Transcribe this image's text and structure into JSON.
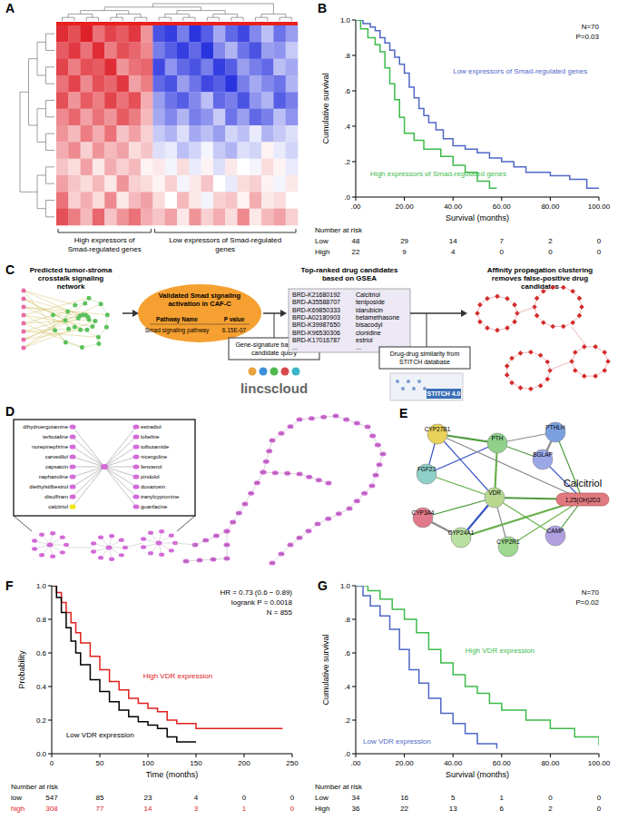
{
  "chart_data": [
    {
      "type": "heatmap",
      "panel": "A",
      "color_range": [
        -2,
        2
      ],
      "groups": [
        {
          "label": "High expressors of Smad-regulated genes",
          "columns": 8
        },
        {
          "label": "Low expressors of Smad-regulated genes",
          "columns": 12
        }
      ],
      "cells": [
        [
          1.8,
          1.5,
          1.9,
          1.2,
          1.6,
          1.4,
          1.7,
          0.9,
          -1.6,
          -1.8,
          -1.2,
          -1.9,
          -1.5,
          -0.8,
          -1.4,
          -1.7,
          -1.1,
          -0.6,
          -1.3,
          -0.9
        ],
        [
          1.4,
          1.7,
          1.2,
          1.8,
          1.1,
          1.5,
          1.3,
          1.0,
          -1.2,
          -1.5,
          -1.8,
          -1.4,
          -1.9,
          -1.1,
          -0.7,
          -1.3,
          -1.6,
          -0.9,
          -1.0,
          -0.5
        ],
        [
          1.6,
          1.1,
          1.5,
          1.4,
          1.8,
          0.9,
          1.2,
          1.3,
          -1.7,
          -1.0,
          -1.4,
          -1.6,
          -1.2,
          -1.8,
          -1.5,
          -0.9,
          -1.2,
          -1.4,
          -0.6,
          -0.8
        ],
        [
          1.2,
          1.6,
          1.0,
          1.5,
          1.3,
          1.7,
          0.8,
          1.1,
          -1.4,
          -1.6,
          -0.9,
          -1.3,
          -1.7,
          -1.5,
          -1.9,
          -1.2,
          -0.8,
          -1.1,
          -1.3,
          -0.7
        ],
        [
          1.5,
          0.9,
          1.4,
          1.1,
          1.6,
          1.2,
          1.5,
          0.7,
          -0.9,
          -1.3,
          -1.5,
          -1.1,
          -0.6,
          -1.4,
          -1.2,
          -1.6,
          -1.0,
          -0.7,
          -1.5,
          -1.2
        ],
        [
          1.0,
          1.3,
          0.8,
          1.2,
          0.9,
          1.4,
          1.1,
          0.6,
          -0.8,
          -1.1,
          -0.7,
          -1.2,
          -1.0,
          -0.5,
          -1.3,
          -0.9,
          -1.4,
          -1.2,
          -0.6,
          -1.0
        ],
        [
          0.9,
          0.6,
          1.1,
          0.7,
          1.2,
          0.5,
          0.8,
          0.4,
          -0.5,
          -0.7,
          -0.3,
          -0.8,
          -0.6,
          -0.9,
          -0.4,
          -0.6,
          -0.2,
          -0.7,
          -0.5,
          -0.3
        ],
        [
          0.7,
          1.0,
          0.4,
          0.9,
          0.6,
          0.8,
          0.3,
          0.5,
          -0.3,
          -0.2,
          -0.6,
          -0.4,
          -0.1,
          -0.5,
          -0.7,
          -0.3,
          -0.4,
          0.1,
          -0.2,
          -0.4
        ],
        [
          0.5,
          0.3,
          0.8,
          0.2,
          0.7,
          0.4,
          0.6,
          0.1,
          0.2,
          -0.1,
          0.3,
          -0.2,
          0.1,
          -0.3,
          0.2,
          0.0,
          -0.1,
          0.3,
          0.1,
          -0.2
        ],
        [
          0.8,
          0.5,
          0.3,
          0.6,
          0.2,
          0.9,
          0.4,
          0.3,
          0.1,
          0.4,
          -0.1,
          0.2,
          0.5,
          0.0,
          -0.2,
          0.3,
          0.4,
          0.1,
          -0.1,
          0.2
        ],
        [
          1.2,
          0.4,
          0.7,
          0.3,
          1.0,
          0.2,
          0.6,
          0.8,
          0.3,
          0.0,
          0.6,
          0.2,
          -0.1,
          0.4,
          0.5,
          0.1,
          0.7,
          0.2,
          0.3,
          0.0
        ],
        [
          1.5,
          1.1,
          0.6,
          1.3,
          0.5,
          0.9,
          1.2,
          0.7,
          0.5,
          0.8,
          0.2,
          0.9,
          0.4,
          0.7,
          0.3,
          1.0,
          0.2,
          0.6,
          0.8,
          0.4
        ]
      ]
    },
    {
      "type": "line",
      "panel": "B",
      "line_style": "step",
      "xlabel": "Survival (months)",
      "ylabel": "Cumulative survival",
      "xlim": [
        0,
        100
      ],
      "ylim": [
        0,
        1
      ],
      "xticks": [
        {
          "value": 0,
          "label": ".00"
        },
        {
          "value": 20,
          "label": "20.00"
        },
        {
          "value": 40,
          "label": "40.00"
        },
        {
          "value": 60,
          "label": "60.00"
        },
        {
          "value": 80,
          "label": "80.00"
        },
        {
          "value": 100,
          "label": "100.00"
        }
      ],
      "yticks": [
        {
          "value": 0,
          "label": ".0"
        },
        {
          "value": 0.2,
          "label": ".2"
        },
        {
          "value": 0.4,
          "label": ".4"
        },
        {
          "value": 0.6,
          "label": ".6"
        },
        {
          "value": 0.8,
          "label": ".8"
        },
        {
          "value": 1,
          "label": "1.0"
        }
      ],
      "annotations": [
        "N=70",
        "P=0.03"
      ],
      "series": [
        {
          "name": "Low expressors of Smad-regulated genes",
          "color": "#4f67c7",
          "x": [
            0,
            3,
            6,
            8,
            10,
            12,
            14,
            16,
            18,
            20,
            22,
            24,
            26,
            28,
            30,
            33,
            36,
            40,
            45,
            50,
            55,
            60,
            65,
            70,
            80,
            88,
            95,
            100
          ],
          "values": [
            1,
            0.98,
            0.96,
            0.94,
            0.9,
            0.87,
            0.83,
            0.79,
            0.75,
            0.7,
            0.62,
            0.56,
            0.5,
            0.46,
            0.42,
            0.38,
            0.33,
            0.29,
            0.27,
            0.25,
            0.22,
            0.2,
            0.17,
            0.14,
            0.12,
            0.1,
            0.05,
            0.05
          ]
        },
        {
          "name": "High expressors of Smad-regulated genes",
          "color": "#3dbb4a",
          "x": [
            0,
            2,
            5,
            8,
            10,
            12,
            14,
            16,
            18,
            20,
            24,
            28,
            35,
            40,
            45,
            50,
            55,
            58
          ],
          "values": [
            1,
            0.95,
            0.9,
            0.86,
            0.82,
            0.73,
            0.64,
            0.55,
            0.45,
            0.36,
            0.32,
            0.27,
            0.23,
            0.18,
            0.14,
            0.09,
            0.05,
            0.05
          ]
        }
      ],
      "risk_table": {
        "title": "Number at risk",
        "times": [
          0,
          20,
          40,
          60,
          80,
          100
        ],
        "rows": [
          {
            "label": "Low",
            "color": "#000000",
            "values": [
              48,
              29,
              14,
              7,
              2,
              0
            ]
          },
          {
            "label": "High",
            "color": "#000000",
            "values": [
              22,
              9,
              4,
              0,
              0,
              0
            ]
          }
        ]
      }
    },
    {
      "type": "line",
      "panel": "F",
      "line_style": "step",
      "xlabel": "Time (months)",
      "ylabel": "Probability",
      "xlim": [
        0,
        250
      ],
      "ylim": [
        0,
        1
      ],
      "xticks": [
        0,
        50,
        100,
        150,
        200,
        250
      ],
      "yticks": [
        {
          "value": 0,
          "label": "0.0"
        },
        {
          "value": 0.2,
          "label": "0.2"
        },
        {
          "value": 0.4,
          "label": "0.4"
        },
        {
          "value": 0.6,
          "label": "0.6"
        },
        {
          "value": 0.8,
          "label": "0.8"
        },
        {
          "value": 1,
          "label": "1.0"
        }
      ],
      "annotations": [
        "HR = 0.73 (0.6 − 0.89)",
        "logrank P = 0.0018",
        "N = 855"
      ],
      "series": [
        {
          "name": "High VDR expression",
          "color": "#e0201b",
          "x": [
            0,
            5,
            10,
            15,
            20,
            25,
            30,
            40,
            50,
            60,
            70,
            80,
            90,
            100,
            110,
            120,
            130,
            150,
            170,
            200,
            240
          ],
          "values": [
            1,
            0.96,
            0.9,
            0.84,
            0.78,
            0.72,
            0.66,
            0.58,
            0.5,
            0.43,
            0.38,
            0.33,
            0.3,
            0.27,
            0.25,
            0.2,
            0.18,
            0.15,
            0.15,
            0.15,
            0.15
          ]
        },
        {
          "name": "Low VDR expression",
          "color": "#000000",
          "x": [
            0,
            5,
            10,
            15,
            20,
            25,
            30,
            40,
            50,
            60,
            70,
            80,
            90,
            100,
            110,
            120,
            130,
            150
          ],
          "values": [
            1,
            0.93,
            0.84,
            0.75,
            0.67,
            0.6,
            0.53,
            0.44,
            0.37,
            0.31,
            0.26,
            0.22,
            0.19,
            0.17,
            0.15,
            0.1,
            0.07,
            0.07
          ]
        }
      ],
      "risk_table": {
        "title": "Number at risk",
        "times": [
          0,
          50,
          100,
          150,
          200,
          250
        ],
        "rows": [
          {
            "label": "low",
            "color": "#000000",
            "values": [
              547,
              85,
              23,
              4,
              0,
              0
            ]
          },
          {
            "label": "high",
            "color": "#e0201b",
            "values": [
              308,
              77,
              14,
              3,
              1,
              0
            ]
          }
        ]
      }
    },
    {
      "type": "line",
      "panel": "G",
      "line_style": "step",
      "xlabel": "Survival (months)",
      "ylabel": "Cumulative survival",
      "xlim": [
        0,
        100
      ],
      "ylim": [
        0,
        1
      ],
      "xticks": [
        {
          "value": 0,
          "label": ".00"
        },
        {
          "value": 20,
          "label": "20.00"
        },
        {
          "value": 40,
          "label": "40.00"
        },
        {
          "value": 60,
          "label": "60.00"
        },
        {
          "value": 80,
          "label": "80.00"
        },
        {
          "value": 100,
          "label": "100.00"
        }
      ],
      "yticks": [
        {
          "value": 0,
          "label": ".0"
        },
        {
          "value": 0.2,
          "label": ".2"
        },
        {
          "value": 0.4,
          "label": ".4"
        },
        {
          "value": 0.6,
          "label": ".6"
        },
        {
          "value": 0.8,
          "label": ".8"
        },
        {
          "value": 1,
          "label": "1.0"
        }
      ],
      "annotations": [
        "N=70",
        "P=0.02"
      ],
      "series": [
        {
          "name": "High VDR expression",
          "color": "#3dbb4a",
          "x": [
            0,
            5,
            10,
            15,
            20,
            25,
            30,
            35,
            40,
            45,
            50,
            55,
            60,
            70,
            80,
            90,
            100
          ],
          "values": [
            1,
            0.97,
            0.92,
            0.86,
            0.8,
            0.72,
            0.62,
            0.54,
            0.47,
            0.4,
            0.36,
            0.3,
            0.26,
            0.2,
            0.15,
            0.1,
            0.05
          ]
        },
        {
          "name": "Low VDR expression",
          "color": "#4f67c7",
          "x": [
            0,
            3,
            6,
            10,
            14,
            18,
            22,
            26,
            30,
            35,
            40,
            45,
            50,
            58
          ],
          "values": [
            1,
            0.94,
            0.88,
            0.82,
            0.74,
            0.62,
            0.5,
            0.42,
            0.33,
            0.24,
            0.18,
            0.12,
            0.06,
            0.03
          ]
        }
      ],
      "risk_table": {
        "title": "Number at risk",
        "times": [
          0,
          20,
          40,
          60,
          80,
          100
        ],
        "rows": [
          {
            "label": "Low",
            "color": "#000000",
            "values": [
              34,
              16,
              5,
              1,
              0,
              0
            ]
          },
          {
            "label": "High",
            "color": "#000000",
            "values": [
              36,
              22,
              13,
              6,
              2,
              0
            ]
          }
        ]
      }
    }
  ],
  "diagram": {
    "C": {
      "panel": "C",
      "network_title": "Predicted tumor-stroma crosstalk signaling network",
      "validation_title": "Validated Smad signaling activation in CAF-C",
      "validation_table": {
        "header": [
          "Pathway Name",
          "P value"
        ],
        "rows": [
          [
            "Smad signaling pathway",
            "6.15E-07"
          ]
        ]
      },
      "candidates_title": "Top-ranked drug candidates based on GSEA",
      "candidates": [
        [
          "BRD-K21680192",
          "Calcitriol"
        ],
        [
          "BRD-A35588707",
          "teniposide"
        ],
        [
          "BRD-K69850333",
          "idarubicin"
        ],
        [
          "BRD-A02180903",
          "betamethasone"
        ],
        [
          "BRD-K39987650",
          "bisacodyl"
        ],
        [
          "BRD-K96530306",
          "clonidine"
        ],
        [
          "BRD-K17016787",
          "estriol"
        ],
        [
          "...",
          "..."
        ]
      ],
      "clustering_title": "Affinity propagation clustering removes false-positive drug candidates",
      "query_label": "Gene-signature based drug candidate query",
      "query_source": "lincscloud",
      "similarity_label": "Drug-drug similarity from STITCH database",
      "similarity_source": "STITCH 4.0"
    },
    "D": {
      "panel": "D",
      "inset_nodes": [
        {
          "label": "dihydroergotamine"
        },
        {
          "label": "terbutaline"
        },
        {
          "label": "norepinephrine"
        },
        {
          "label": "carvedilol"
        },
        {
          "label": "capsaicin"
        },
        {
          "label": "naphazoline"
        },
        {
          "label": "diethylstilbestrol"
        },
        {
          "label": "disulfiram"
        },
        {
          "label": "calcitriol",
          "highlight": true
        },
        {
          "label": "estradiol"
        },
        {
          "label": "lobeline"
        },
        {
          "label": "tolbutamide"
        },
        {
          "label": "nicergoline"
        },
        {
          "label": "fenoterol"
        },
        {
          "label": "pindolol"
        },
        {
          "label": "doxazosin"
        },
        {
          "label": "tranylcypromine"
        },
        {
          "label": "guanfacine"
        }
      ]
    },
    "E": {
      "panel": "E",
      "nodes": [
        "CYP27B1",
        "PTH",
        "PTHLH",
        "FGF23",
        "BGLAP",
        "CYP3A4",
        "VDR",
        "CYP24A1",
        "CYP2R1",
        "CAMP"
      ],
      "drug": "1,25(OH)2D3",
      "drug_name": "Calcitriol"
    }
  }
}
